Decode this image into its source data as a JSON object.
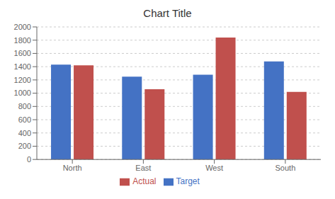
{
  "chart_data": {
    "type": "bar",
    "title": "Chart Title",
    "categories": [
      "North",
      "East",
      "West",
      "South"
    ],
    "series": [
      {
        "name": "Target",
        "color": "#4472C4",
        "values": [
          1430,
          1250,
          1280,
          1480
        ]
      },
      {
        "name": "Actual",
        "color": "#C0504D",
        "values": [
          1420,
          1060,
          1840,
          1020
        ]
      }
    ],
    "ylim": [
      0,
      2000
    ],
    "yticks": [
      0,
      200,
      400,
      600,
      800,
      1000,
      1200,
      1400,
      1600,
      1800,
      2000
    ],
    "grid": true,
    "legend": "bottom"
  }
}
